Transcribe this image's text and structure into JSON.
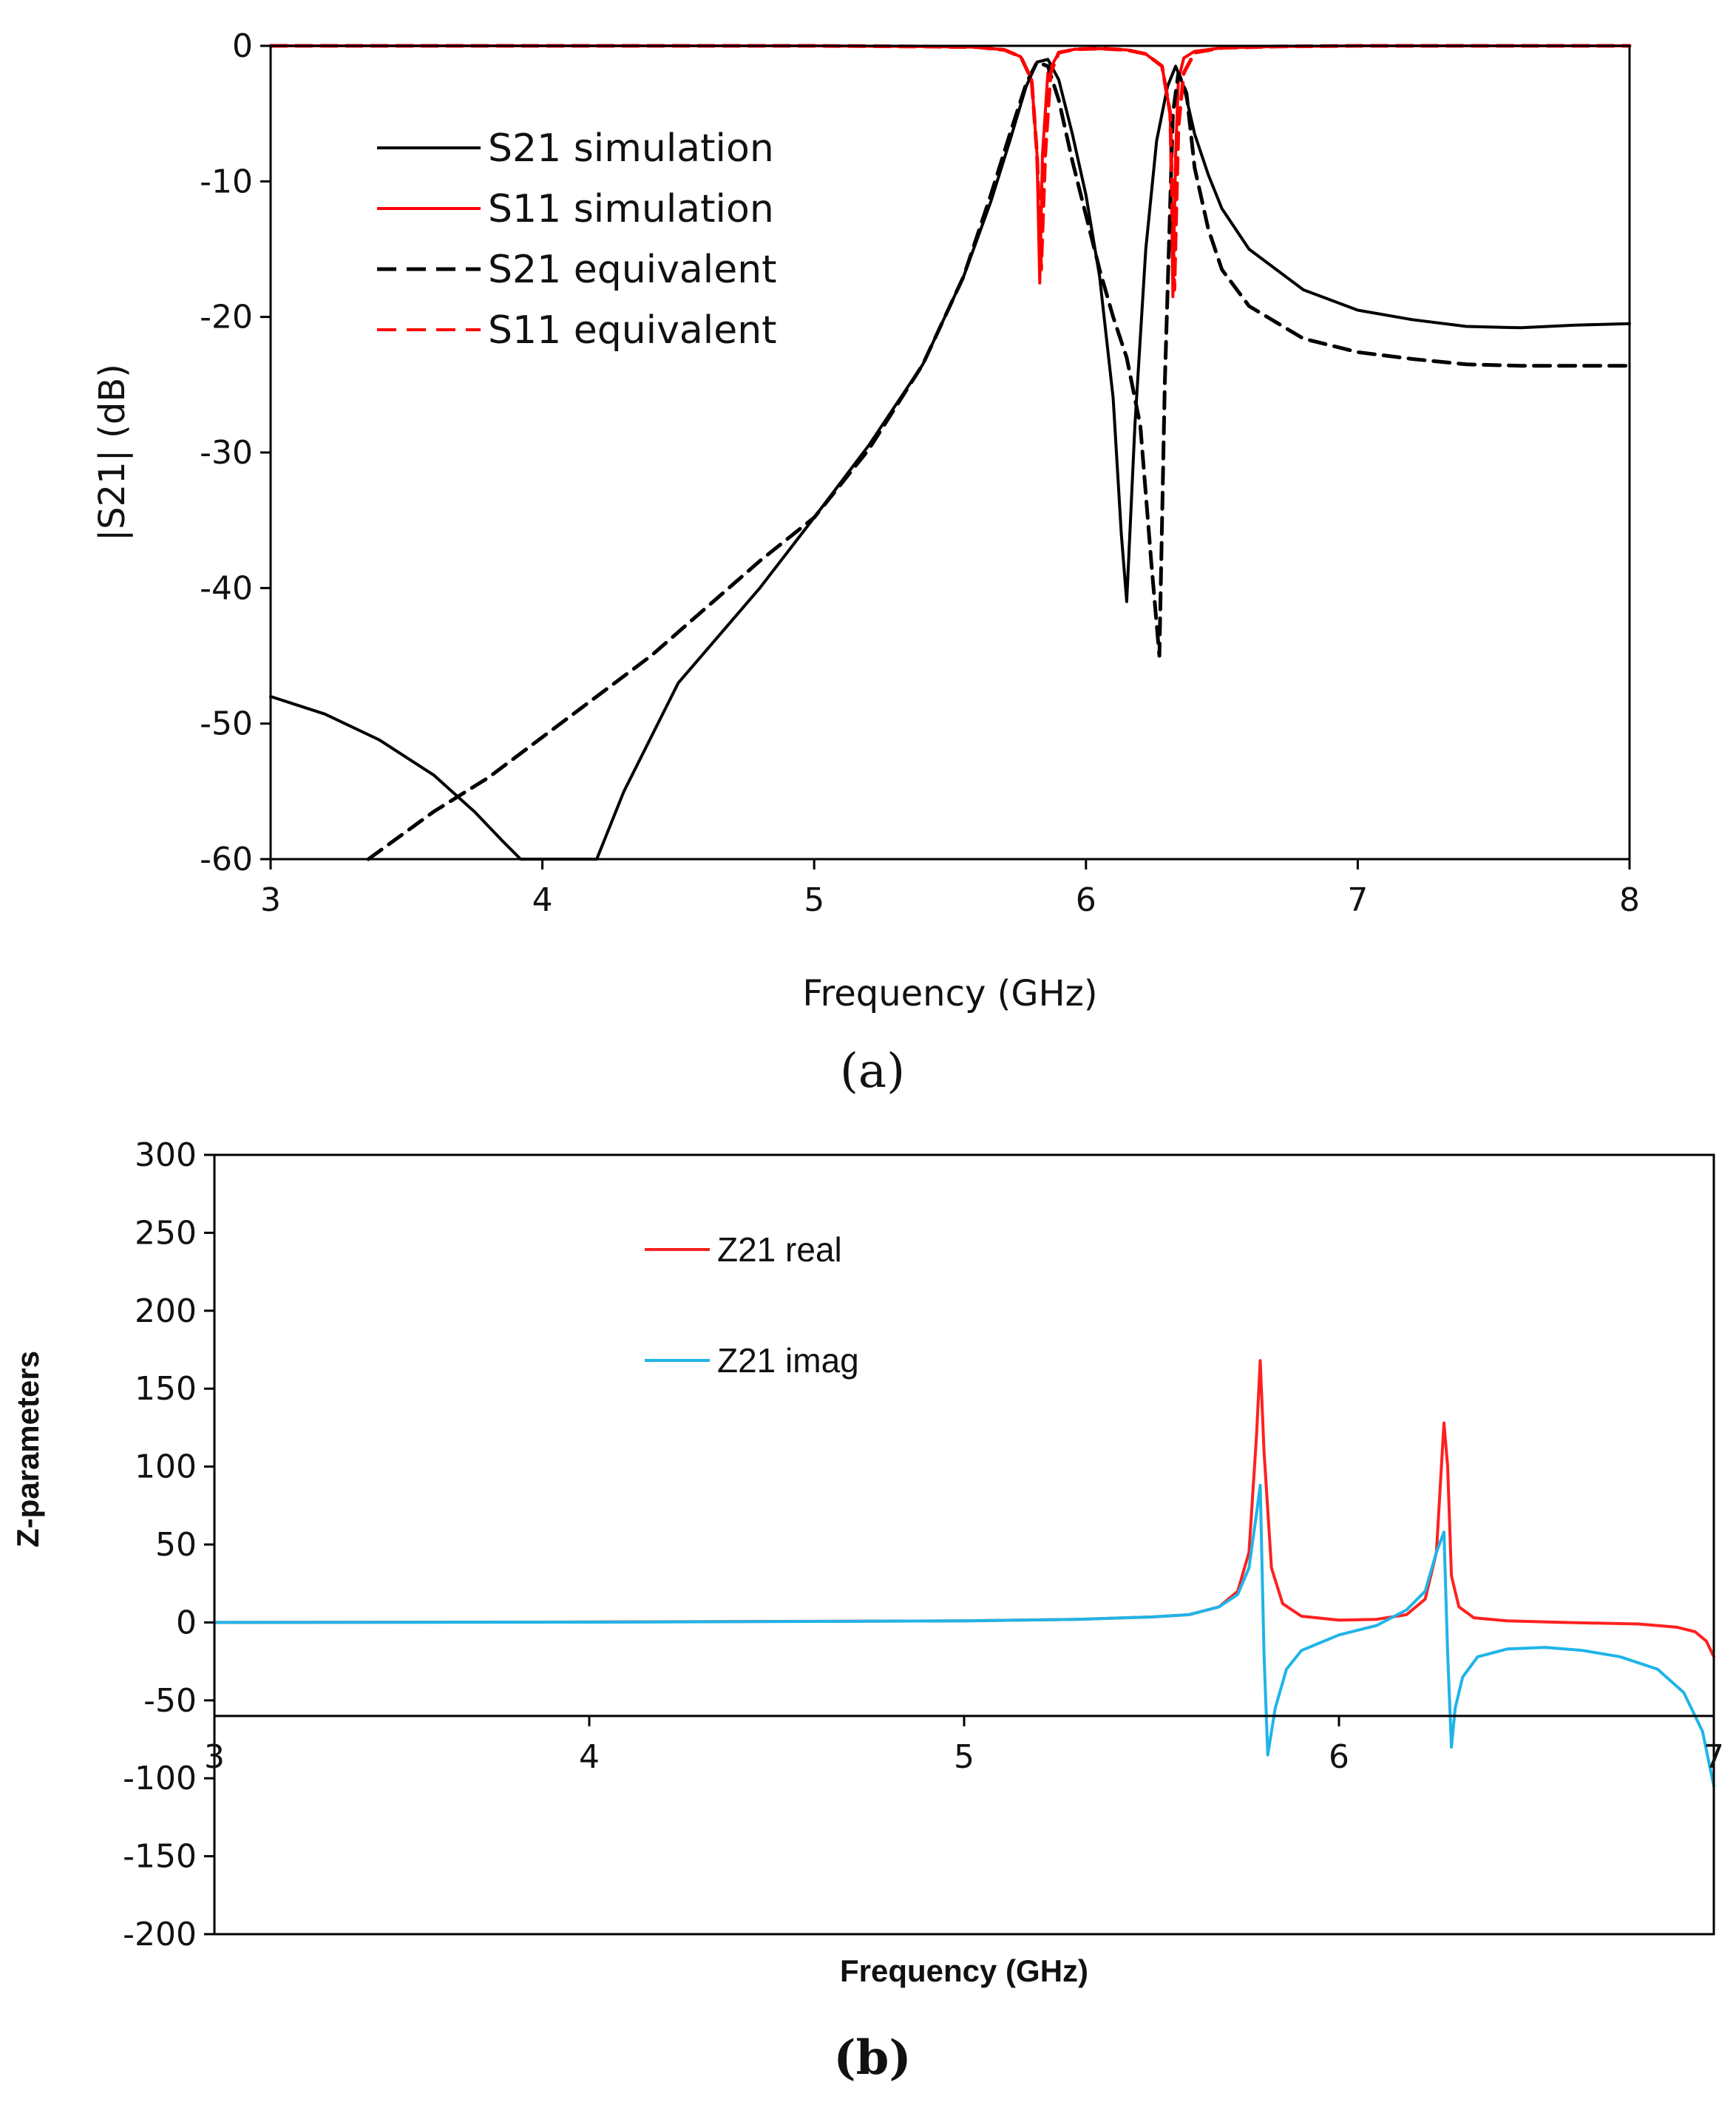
{
  "chart_data": [
    {
      "panel": "a",
      "type": "line",
      "xlabel": "Frequency (GHz)",
      "ylabel": "|S21|  (dB)",
      "xlim": [
        3,
        8
      ],
      "ylim": [
        -60,
        0
      ],
      "xticks": [
        3,
        4,
        5,
        6,
        7,
        8
      ],
      "yticks": [
        0,
        -10,
        -20,
        -30,
        -40,
        -50,
        -60
      ],
      "legend_position": "upper-left",
      "series": [
        {
          "name": "S21 simulation",
          "color": "#000000",
          "dash": "solid",
          "x": [
            3.0,
            3.2,
            3.4,
            3.6,
            3.75,
            3.85,
            3.92,
            3.95,
            4.2,
            4.3,
            4.5,
            4.8,
            5.0,
            5.2,
            5.4,
            5.55,
            5.65,
            5.72,
            5.78,
            5.82,
            5.86,
            5.9,
            5.95,
            6.0,
            6.05,
            6.1,
            6.13,
            6.15,
            6.18,
            6.22,
            6.26,
            6.3,
            6.33,
            6.36,
            6.4,
            6.45,
            6.5,
            6.6,
            6.8,
            7.0,
            7.2,
            7.4,
            7.6,
            7.8,
            8.0
          ],
          "y": [
            -48,
            -49.3,
            -51.2,
            -53.8,
            -56.5,
            -58.6,
            -60,
            -60,
            -60,
            -55,
            -47,
            -40,
            -34.8,
            -29.5,
            -23.5,
            -17,
            -11.5,
            -7,
            -3,
            -1.2,
            -1,
            -2.5,
            -6.5,
            -11,
            -17,
            -26,
            -36,
            -41,
            -28,
            -15,
            -7,
            -3,
            -1.5,
            -3,
            -6.5,
            -9.5,
            -12,
            -15,
            -18,
            -19.5,
            -20.2,
            -20.7,
            -20.8,
            -20.6,
            -20.5
          ]
        },
        {
          "name": "S11 simulation",
          "color": "#ff0000",
          "dash": "solid",
          "x": [
            3.0,
            5.0,
            5.4,
            5.6,
            5.7,
            5.76,
            5.8,
            5.82,
            5.83,
            5.84,
            5.86,
            5.9,
            5.96,
            6.05,
            6.15,
            6.22,
            6.28,
            6.31,
            6.32,
            6.33,
            6.34,
            6.36,
            6.4,
            6.5,
            6.7,
            7.0,
            8.0
          ],
          "y": [
            0,
            0,
            -0.05,
            -0.1,
            -0.3,
            -0.8,
            -2.5,
            -8,
            -17.5,
            -8,
            -2,
            -0.5,
            -0.25,
            -0.2,
            -0.3,
            -0.6,
            -1.5,
            -5,
            -18.5,
            -8,
            -2.5,
            -0.9,
            -0.4,
            -0.15,
            -0.05,
            0,
            0
          ]
        },
        {
          "name": "S21 equivalent",
          "color": "#000000",
          "dash": "dashed",
          "x": [
            3.36,
            3.6,
            3.8,
            4.0,
            4.2,
            4.4,
            4.6,
            4.8,
            5.0,
            5.2,
            5.4,
            5.55,
            5.65,
            5.72,
            5.78,
            5.82,
            5.86,
            5.9,
            5.95,
            6.0,
            6.05,
            6.1,
            6.15,
            6.2,
            6.24,
            6.27,
            6.29,
            6.32,
            6.34,
            6.37,
            6.4,
            6.45,
            6.5,
            6.6,
            6.8,
            7.0,
            7.2,
            7.4,
            7.6,
            7.8,
            8.0
          ],
          "y": [
            -60,
            -56.5,
            -54,
            -51,
            -48,
            -45,
            -41.5,
            -38,
            -34.8,
            -29.8,
            -23.5,
            -17,
            -11,
            -6.5,
            -2.8,
            -1.2,
            -1.5,
            -4,
            -8.5,
            -12.5,
            -16.5,
            -20,
            -23,
            -28,
            -38,
            -45,
            -25,
            -5,
            -2,
            -3.5,
            -9,
            -13.5,
            -16.5,
            -19.2,
            -21.6,
            -22.6,
            -23.1,
            -23.5,
            -23.6,
            -23.6,
            -23.6
          ]
        },
        {
          "name": "S11 equivalent",
          "color": "#ff0000",
          "dash": "dashed",
          "x": [
            3.0,
            5.0,
            5.4,
            5.6,
            5.7,
            5.76,
            5.8,
            5.82,
            5.835,
            5.85,
            5.87,
            5.9,
            5.96,
            6.05,
            6.15,
            6.22,
            6.28,
            6.31,
            6.325,
            6.34,
            6.36,
            6.4,
            6.5,
            6.7,
            7.0,
            8.0
          ],
          "y": [
            0,
            0,
            -0.05,
            -0.1,
            -0.3,
            -0.8,
            -2.5,
            -8,
            -16.5,
            -8,
            -2,
            -0.5,
            -0.25,
            -0.2,
            -0.3,
            -0.6,
            -1.5,
            -5,
            -18,
            -6,
            -2,
            -0.5,
            -0.15,
            -0.05,
            0,
            0
          ]
        }
      ]
    },
    {
      "panel": "b",
      "type": "line",
      "xlabel": "Frequency (GHz)",
      "ylabel": "Z-parameters",
      "xlim": [
        3,
        7
      ],
      "ylim": [
        -200,
        300
      ],
      "x_axis_crosses_y": -60,
      "xticks": [
        3,
        4,
        5,
        6,
        7
      ],
      "yticks": [
        300,
        250,
        200,
        150,
        100,
        50,
        0,
        -50,
        -100,
        -150,
        -200
      ],
      "legend_position": "upper-left",
      "series": [
        {
          "name": "Z21 real",
          "color": "#ff2020",
          "dash": "solid",
          "x": [
            3.0,
            4.0,
            5.0,
            5.3,
            5.5,
            5.6,
            5.68,
            5.73,
            5.76,
            5.78,
            5.79,
            5.8,
            5.82,
            5.85,
            5.9,
            6.0,
            6.1,
            6.18,
            6.23,
            6.26,
            6.28,
            6.29,
            6.3,
            6.32,
            6.36,
            6.45,
            6.6,
            6.8,
            6.9,
            6.95,
            6.98,
            7.0
          ],
          "y": [
            0,
            0.3,
            1,
            2,
            3.5,
            5,
            10,
            20,
            45,
            120,
            168,
            110,
            35,
            12,
            4,
            1.5,
            2,
            5,
            15,
            45,
            128,
            100,
            30,
            10,
            3,
            1,
            0,
            -1,
            -3,
            -6,
            -12,
            -22
          ]
        },
        {
          "name": "Z21 imag",
          "color": "#1fb4e8",
          "dash": "solid",
          "x": [
            3.0,
            4.0,
            5.0,
            5.3,
            5.5,
            5.6,
            5.68,
            5.73,
            5.76,
            5.78,
            5.79,
            5.8,
            5.81,
            5.83,
            5.86,
            5.9,
            6.0,
            6.1,
            6.18,
            6.23,
            6.26,
            6.28,
            6.29,
            6.3,
            6.31,
            6.33,
            6.37,
            6.45,
            6.55,
            6.65,
            6.75,
            6.85,
            6.92,
            6.97,
            7.0
          ],
          "y": [
            0,
            0.2,
            1,
            2,
            3.5,
            5,
            10,
            18,
            35,
            70,
            88,
            -20,
            -85,
            -55,
            -30,
            -18,
            -8,
            -2,
            8,
            20,
            45,
            58,
            -20,
            -80,
            -55,
            -35,
            -22,
            -17,
            -16,
            -18,
            -22,
            -30,
            -45,
            -70,
            -105
          ]
        }
      ]
    }
  ],
  "labels": {
    "panel_a": "(a)",
    "panel_b": "(b)"
  }
}
